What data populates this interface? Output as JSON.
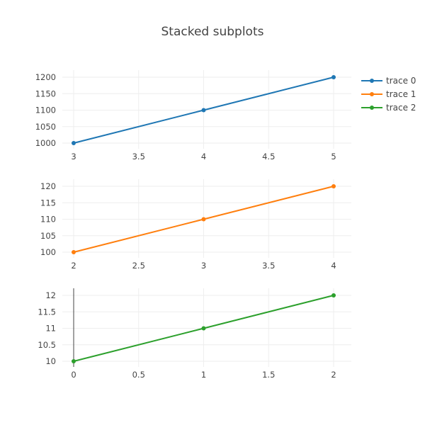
{
  "chart_data": {
    "type": "line",
    "title": "Stacked subplots",
    "legend": "right",
    "grid": true,
    "series": [
      {
        "name": "trace 0",
        "color": "#1f77b4",
        "x": [
          3,
          4,
          5
        ],
        "y": [
          1000,
          1100,
          1200
        ],
        "xlim": [
          3,
          5
        ],
        "ylim": [
          1000,
          1200
        ],
        "xticks": [
          "3",
          "3.5",
          "4",
          "4.5",
          "5"
        ],
        "yticks": [
          "1000",
          "1050",
          "1100",
          "1150",
          "1200"
        ]
      },
      {
        "name": "trace 1",
        "color": "#ff7f0e",
        "x": [
          2,
          3,
          4
        ],
        "y": [
          100,
          110,
          120
        ],
        "xlim": [
          2,
          4
        ],
        "ylim": [
          100,
          120
        ],
        "xticks": [
          "2",
          "2.5",
          "3",
          "3.5",
          "4"
        ],
        "yticks": [
          "100",
          "105",
          "110",
          "115",
          "120"
        ]
      },
      {
        "name": "trace 2",
        "color": "#2ca02c",
        "x": [
          0,
          1,
          2
        ],
        "y": [
          10,
          11,
          12
        ],
        "xlim": [
          0,
          2
        ],
        "ylim": [
          10,
          12
        ],
        "xticks": [
          "0",
          "0.5",
          "1",
          "1.5",
          "2"
        ],
        "yticks": [
          "10",
          "10.5",
          "11",
          "11.5",
          "12"
        ]
      }
    ]
  }
}
